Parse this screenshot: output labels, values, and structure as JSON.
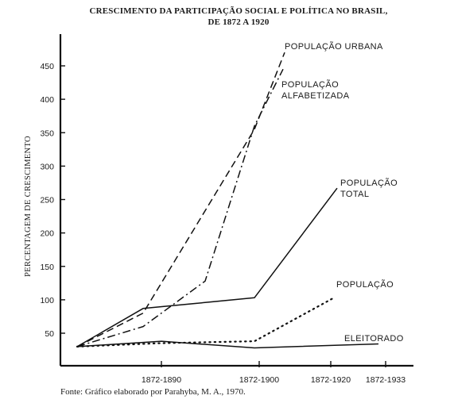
{
  "chart_data": {
    "type": "line",
    "title": "CRESCIMENTO DA PARTICIPAÇÃO SOCIAL E POLÍTICA NO BRASIL,",
    "subtitle": "DE 1872 A 1920",
    "ylabel": "PERCENTAGEM DE CRESCIMENTO",
    "source": "Fonte: Gráfico elaborado por Parahyba, M. A., 1970.",
    "categories": [
      "1872-1890",
      "1872-1900",
      "1872-1920",
      "1872-1933"
    ],
    "y_ticks": [
      "50",
      "100",
      "150",
      "200",
      "250",
      "300",
      "350",
      "400",
      "450"
    ],
    "ylim": [
      20,
      480
    ],
    "legend": "labels at line ends",
    "series": [
      {
        "name_lines": [
          "POPULAÇÃO URBANA"
        ],
        "style": "dashed",
        "points": [
          [
            0,
            30
          ],
          [
            1.1,
            80
          ],
          [
            2,
            355
          ],
          [
            3,
            470
          ]
        ]
      },
      {
        "name_lines": [
          "POPULAÇÃO",
          "ALFABETIZADA"
        ],
        "style": "dashdot",
        "points": [
          [
            0,
            30
          ],
          [
            1,
            60
          ],
          [
            1.6,
            128
          ],
          [
            2,
            360
          ],
          [
            3,
            445
          ]
        ]
      },
      {
        "name_lines": [
          "POPULAÇÃO",
          "TOTAL"
        ],
        "style": "solid",
        "points": [
          [
            0,
            30
          ],
          [
            0.9,
            87
          ],
          [
            2,
            103
          ],
          [
            3,
            267
          ]
        ]
      },
      {
        "name_lines": [
          "POPULAÇÃO"
        ],
        "style": "dotted",
        "points": [
          [
            0,
            30
          ],
          [
            1,
            35
          ],
          [
            2,
            38
          ],
          [
            3,
            103
          ]
        ]
      },
      {
        "name_lines": [
          "ELEITORADO"
        ],
        "style": "solid",
        "points": [
          [
            0,
            30
          ],
          [
            1,
            38
          ],
          [
            2,
            28
          ],
          [
            3,
            34
          ]
        ]
      }
    ]
  }
}
